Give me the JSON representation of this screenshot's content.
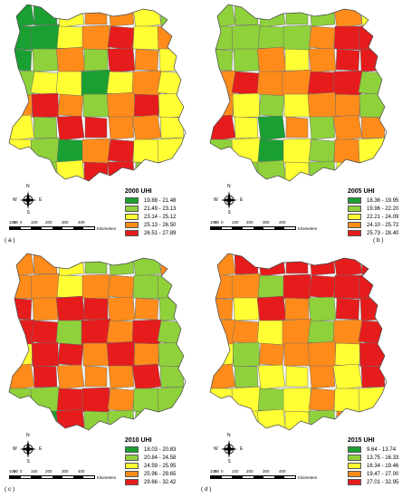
{
  "colors": [
    "#1aa032",
    "#8fd13a",
    "#ffff33",
    "#ff8c1a",
    "#e61c1c"
  ],
  "north_letters": {
    "n": "N",
    "s": "S",
    "e": "E",
    "w": "W"
  },
  "scale": {
    "labels": [
      "100",
      "50",
      "0",
      "100",
      "200",
      "300",
      "400"
    ],
    "unit": "Kilometers"
  },
  "panels": [
    {
      "label": "( a )",
      "legend_title": "2000 UHI",
      "classes": [
        "19.88 - 21.48",
        "21.49 - 23.13",
        "23.14 - 25.12",
        "25.13 - 26.50",
        "26.51 - 27.89"
      ]
    },
    {
      "label": "( b )",
      "legend_title": "2005 UHI",
      "classes": [
        "18.36 - 19.95",
        "19.96 - 22.20",
        "22.21 - 24.09",
        "24.10 - 25.72",
        "25.73 - 28.40"
      ]
    },
    {
      "label": "( c )",
      "legend_title": "2010  UHI",
      "classes": [
        "18.03 - 20.83",
        "20.84 - 24.58",
        "24.59 - 25.95",
        "25.96 - 29.65",
        "29.66 - 32.42"
      ]
    },
    {
      "label": "( d )",
      "legend_title": "2015  UHI",
      "classes": [
        "9.64 - 13.74",
        "13.75 - 16.33",
        "16.34 - 19.46",
        "19.47 - 27.00",
        "27.01 - 32.95"
      ]
    }
  ]
}
